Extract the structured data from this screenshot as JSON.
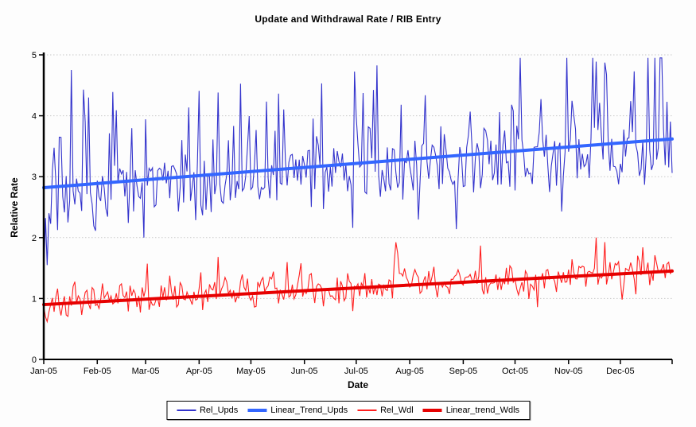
{
  "chart": {
    "title": "Update and Withdrawal Rate / RIB Entry",
    "xlabel": "Date",
    "ylabel": "Relative Rate"
  },
  "chart_data": {
    "type": "line",
    "title": "Update and Withdrawal Rate / RIB Entry",
    "xlabel": "Date",
    "ylabel": "Relative Rate",
    "x_axis": {
      "unit": "day",
      "count": 365,
      "tick_labels": [
        "Jan-05",
        "Feb-05",
        "Mar-05",
        "Apr-05",
        "May-05",
        "Jun-05",
        "Jul-05",
        "Aug-05",
        "Sep-05",
        "Oct-05",
        "Nov-05",
        "Dec-05"
      ],
      "month_start_days": [
        0,
        31,
        59,
        90,
        120,
        151,
        181,
        212,
        243,
        273,
        304,
        334
      ]
    },
    "y_axis": {
      "min": 0,
      "max": 5,
      "ticks": [
        0,
        1,
        2,
        3,
        4,
        5
      ]
    },
    "grid": {
      "horizontal_dotted": true,
      "color": "#c8c8c8"
    },
    "legend_position": "bottom-center",
    "axis_color": "#000000",
    "series": [
      {
        "name": "Rel_Upds",
        "kind": "noisy",
        "color": "#3333cc",
        "stroke_width": 1.1,
        "summary": {
          "mean_start": 2.82,
          "mean_end": 3.62,
          "observed_min": 1.4,
          "observed_max": 4.95
        },
        "gen": {
          "seed": 42,
          "n": 365,
          "start": 2.82,
          "end": 3.62,
          "ar": 0.35,
          "jitter": 0.45,
          "offset": -0.2,
          "spike_p": 0.22,
          "spike_min": 0.5,
          "spike_max": 1.8,
          "dip_p": 0.08,
          "dip_min": 0.3,
          "dip_max": 0.6,
          "clip_min": 2.0,
          "clip_max": 4.95,
          "head": [
            1.42,
            2.32,
            1.55,
            2.4
          ]
        }
      },
      {
        "name": "Linear_Trend_Upds",
        "kind": "trend",
        "color": "#3366ff",
        "stroke_width": 4,
        "start": 2.82,
        "end": 3.62
      },
      {
        "name": "Rel_Wdl",
        "kind": "noisy",
        "color": "#ff1f1f",
        "stroke_width": 1.1,
        "summary": {
          "mean_start": 0.9,
          "mean_end": 1.45,
          "observed_min": 0.58,
          "observed_max": 2.0
        },
        "gen": {
          "seed": 7,
          "n": 365,
          "start": 0.9,
          "end": 1.45,
          "ar": 0.5,
          "jitter": 0.2,
          "offset": 0,
          "spike_p": 0.06,
          "spike_min": 0.25,
          "spike_max": 0.6,
          "dip_p": 0.06,
          "dip_min": 0.15,
          "dip_max": 0.3,
          "clip_min": 0.58,
          "clip_max": 2.0,
          "head": [
            0.86,
            0.7,
            0.62,
            0.78
          ]
        }
      },
      {
        "name": "Linear_trend_Wdls",
        "kind": "trend",
        "color": "#e60000",
        "stroke_width": 4,
        "start": 0.9,
        "end": 1.45
      }
    ]
  }
}
